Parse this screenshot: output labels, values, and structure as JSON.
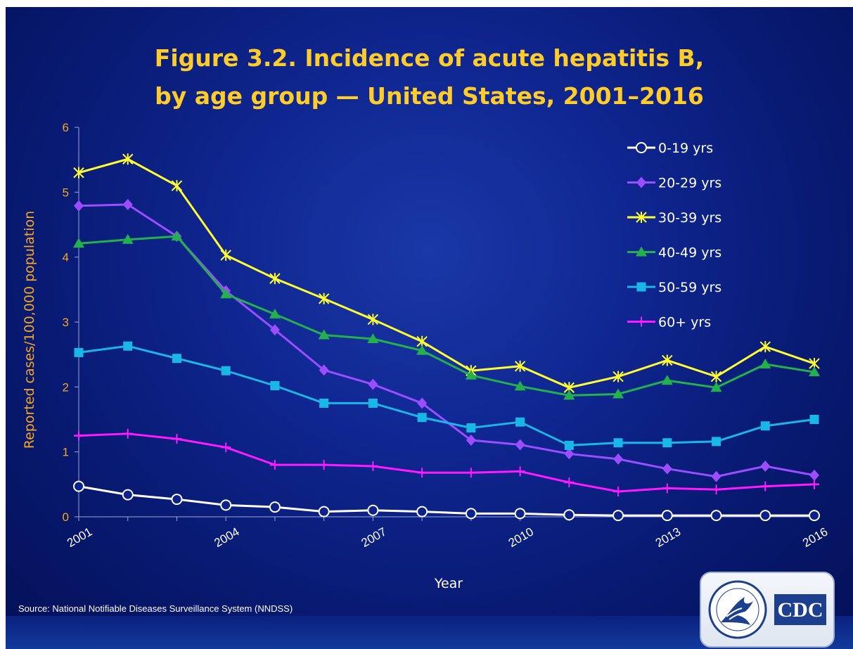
{
  "slide": {
    "title_line1": "Figure 3.2. Incidence of acute hepatitis B,",
    "title_line2": "by age group — United States, 2001–2016",
    "source": "Source: National Notifiable Diseases Surveillance System (NNDSS)",
    "logo_text": "CDC",
    "colors": {
      "title": "#ffcc29",
      "axis_title_y": "#f5a623",
      "axis_title_x": "#ffffff",
      "background": "#0c2289"
    }
  },
  "chart_data": {
    "type": "line",
    "title": "Figure 3.2. Incidence of acute hepatitis B, by age group — United States, 2001–2016",
    "xlabel": "Year",
    "ylabel": "Reported cases/100,000 population",
    "ylim": [
      0,
      6
    ],
    "yticks": [
      0,
      1,
      2,
      3,
      4,
      5,
      6
    ],
    "x": [
      2001,
      2002,
      2003,
      2004,
      2005,
      2006,
      2007,
      2008,
      2009,
      2010,
      2011,
      2012,
      2013,
      2014,
      2015,
      2016
    ],
    "xtick_labels": [
      "2001",
      "2004",
      "2007",
      "2010",
      "2013",
      "2016"
    ],
    "grid": false,
    "legend_position": "top-right",
    "series": [
      {
        "name": "0-19 yrs",
        "color": "#ffffff",
        "marker": "open-circle",
        "values": [
          0.47,
          0.34,
          0.27,
          0.18,
          0.15,
          0.08,
          0.1,
          0.08,
          0.05,
          0.05,
          0.03,
          0.02,
          0.02,
          0.02,
          0.02,
          0.02
        ]
      },
      {
        "name": "20-29 yrs",
        "color": "#9b4dff",
        "marker": "diamond",
        "values": [
          4.79,
          4.81,
          4.32,
          3.48,
          2.88,
          2.26,
          2.04,
          1.75,
          1.18,
          1.11,
          0.97,
          0.89,
          0.74,
          0.62,
          0.78,
          0.64
        ]
      },
      {
        "name": "30-39 yrs",
        "color": "#ffff33",
        "marker": "star",
        "values": [
          5.3,
          5.51,
          5.1,
          4.03,
          3.67,
          3.36,
          3.04,
          2.7,
          2.25,
          2.32,
          1.99,
          2.16,
          2.41,
          2.16,
          2.62,
          2.36
        ]
      },
      {
        "name": "40-49 yrs",
        "color": "#22b14c",
        "marker": "triangle",
        "values": [
          4.21,
          4.27,
          4.32,
          3.43,
          3.12,
          2.8,
          2.74,
          2.56,
          2.18,
          2.01,
          1.87,
          1.89,
          2.1,
          1.99,
          2.35,
          2.23
        ]
      },
      {
        "name": "50-59 yrs",
        "color": "#19b7e8",
        "marker": "square",
        "values": [
          2.53,
          2.63,
          2.44,
          2.25,
          2.02,
          1.75,
          1.75,
          1.53,
          1.37,
          1.46,
          1.1,
          1.14,
          1.14,
          1.16,
          1.4,
          1.5
        ]
      },
      {
        "name": "60+ yrs",
        "color": "#ff1aff",
        "marker": "dash",
        "values": [
          1.25,
          1.28,
          1.2,
          1.07,
          0.8,
          0.8,
          0.78,
          0.68,
          0.68,
          0.7,
          0.53,
          0.39,
          0.44,
          0.42,
          0.47,
          0.5
        ]
      }
    ]
  }
}
